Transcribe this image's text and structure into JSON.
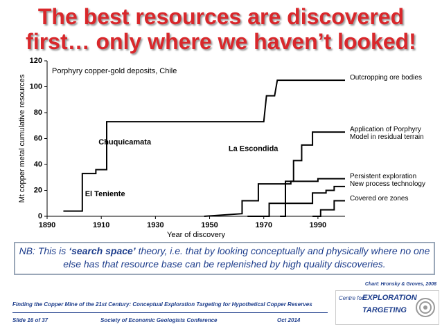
{
  "title_lines": [
    "The best resources are discovered",
    "first… only where we haven’t looked!"
  ],
  "chart_data": {
    "type": "line",
    "annotation": "Porphyry copper-gold deposits, Chile",
    "x_label": "Year of discovery",
    "y_label": "Mt copper metal cumulative resources",
    "xlim": [
      1890,
      2000
    ],
    "xticks": [
      1890,
      1910,
      1930,
      1950,
      1970,
      1990
    ],
    "ylim": [
      0,
      120
    ],
    "yticks": [
      0,
      20,
      40,
      60,
      80,
      100,
      120
    ],
    "labels": [
      {
        "text": "Chuquicamata",
        "x": 1909,
        "y": 57
      },
      {
        "text": "La Escondida",
        "x": 1957,
        "y": 52
      },
      {
        "text": "El Teniente",
        "x": 1904,
        "y": 17
      }
    ],
    "series": [
      {
        "name": "Outcropping ore bodies",
        "color": "#000000",
        "x": [
          1896,
          1903,
          1903,
          1908,
          1908,
          1912,
          1912,
          1970,
          1971,
          1974,
          1975,
          2000
        ],
        "values": [
          4,
          4,
          33,
          33,
          36,
          36,
          73,
          73,
          93,
          93,
          105,
          105
        ]
      },
      {
        "name": "Application of Porphyry Model in residual terrain",
        "color": "#000000",
        "x": [
          1976,
          1978,
          1978,
          1981,
          1981,
          1984,
          1984,
          1988,
          1988,
          2000
        ],
        "values": [
          0,
          0,
          27,
          27,
          43,
          43,
          55,
          55,
          65,
          65
        ]
      },
      {
        "name": "Persistent exploration",
        "color": "#000000",
        "x": [
          1948,
          1962,
          1962,
          1968,
          1968,
          1980,
          1980,
          1990,
          1990,
          2000
        ],
        "values": [
          0,
          2,
          12,
          12,
          25,
          25,
          27,
          27,
          29,
          29
        ]
      },
      {
        "name": "New process technology",
        "color": "#000000",
        "x": [
          1964,
          1972,
          1972,
          1988,
          1988,
          1993,
          1993,
          1996,
          1996,
          2000
        ],
        "values": [
          0,
          0,
          10,
          10,
          18,
          18,
          20,
          20,
          23,
          23
        ]
      },
      {
        "name": "Covered ore zones",
        "color": "#000000",
        "x": [
          1988,
          1991,
          1991,
          1996,
          1996,
          2000
        ],
        "values": [
          0,
          0,
          5,
          5,
          12,
          12
        ]
      }
    ]
  },
  "note": {
    "lead": "NB: This is ",
    "emphasis": "‘search space’",
    "rest": " theory, i.e. that by looking conceptually and physically where no one else has that resource base can be replenished by high quality discoveries."
  },
  "credit": "Chart: Hronsky & Groves, 2008",
  "footer": {
    "talk": "Finding the Copper Mine of the 21st Century: Conceptual Exploration Targeting for Hypothetical Copper Reserves",
    "slide": "Slide 16 of 37",
    "event": "Society of Economic Geologists Conference",
    "date": "Oct 2014"
  },
  "logo": {
    "line1": "Centre for",
    "line2": "EXPLORATION",
    "line3": "TARGETING"
  }
}
